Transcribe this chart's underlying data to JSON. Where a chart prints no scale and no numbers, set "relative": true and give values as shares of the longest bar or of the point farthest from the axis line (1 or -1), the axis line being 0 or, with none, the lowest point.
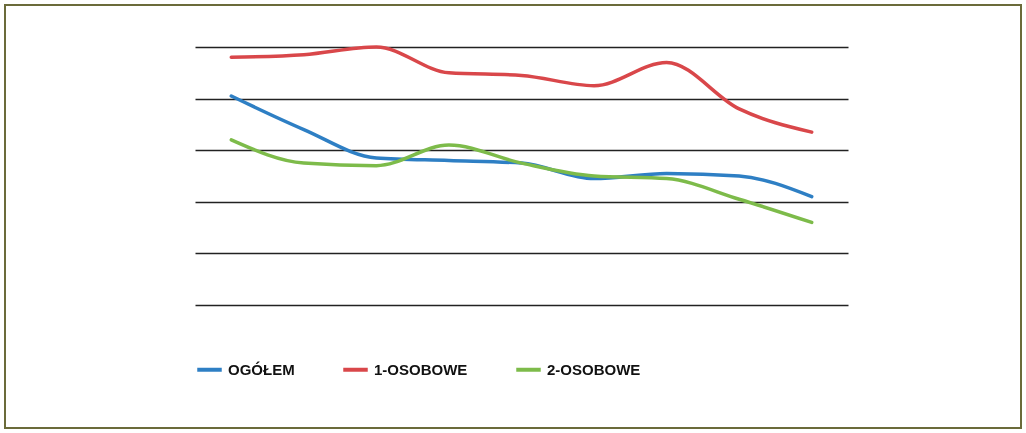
{
  "chart_data": {
    "type": "line",
    "relative": true,
    "categories": [
      null,
      null,
      null,
      null,
      null,
      null,
      null,
      null,
      null
    ],
    "grid": "y",
    "legend": "bottom",
    "tick_labels": false,
    "series": [
      {
        "name": "OGÓŁEM",
        "color": "#2e7fc4",
        "values": [
          0.81,
          0.68,
          0.57,
          0.56,
          0.55,
          0.49,
          0.51,
          0.5,
          0.42
        ]
      },
      {
        "name": "1-OSOBOWE",
        "color": "#d9474a",
        "values": [
          0.96,
          0.97,
          1,
          0.9,
          0.89,
          0.85,
          0.94,
          0.76,
          0.67
        ]
      },
      {
        "name": "2-OSOBOWE",
        "color": "#7dbb4a",
        "values": [
          0.64,
          0.55,
          0.54,
          0.62,
          0.55,
          0.5,
          0.49,
          0.41,
          0.32
        ]
      }
    ]
  }
}
